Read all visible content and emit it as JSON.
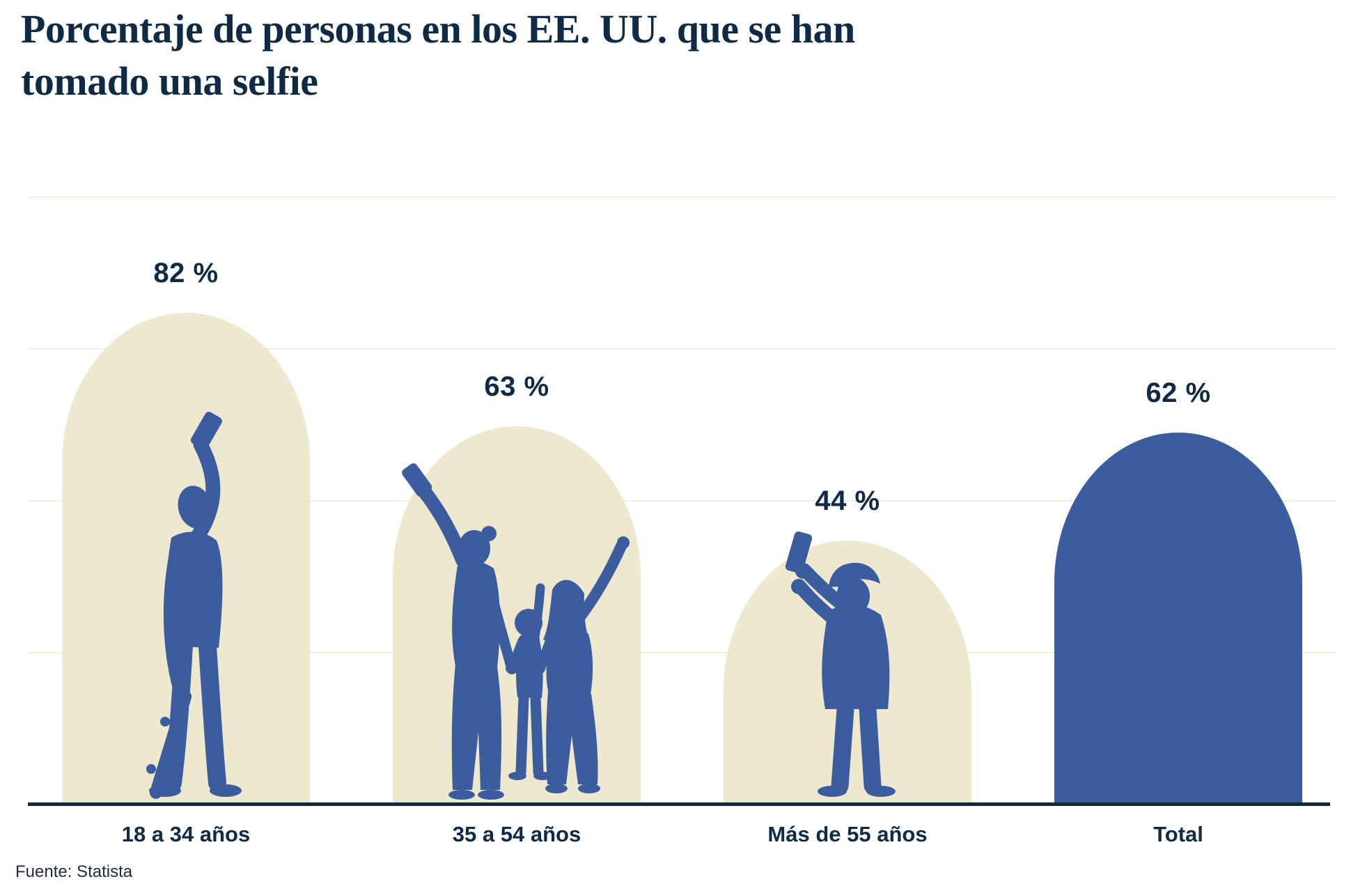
{
  "title": "Porcentaje de personas en los EE. UU. que se han tomado una selfie",
  "source_label": "Fuente: Statista",
  "colors": {
    "background": "#ffffff",
    "title_navy": "#0e2a45",
    "bar_beige": "#eee8ce",
    "bar_blue": "#3b5c9f",
    "gridline": "#f1ecdc",
    "axis": "#16283e",
    "source_text": "#1d2c3c"
  },
  "chart_data": {
    "type": "bar",
    "title": "Porcentaje de personas en los EE. UU. que se han tomado una selfie",
    "categories": [
      "18 a 34 años",
      "35 a 54 años",
      "Más de 55 años",
      "Total"
    ],
    "values": [
      82,
      63,
      44,
      62
    ],
    "value_labels": [
      "82 %",
      "63 %",
      "44 %",
      "62 %"
    ],
    "unit": "%",
    "ylim": [
      0,
      100
    ],
    "gridlines": "4 horizontal lines at 25/50/75/100, no tick labels",
    "legend": "none",
    "bar_shape": "rounded arch (dome top)",
    "bar_styles": [
      "beige with blue silhouette",
      "beige with blue silhouette",
      "beige with blue silhouette",
      "solid blue"
    ],
    "silhouettes": [
      "young man taking selfie holding skateboard",
      "mother with two children taking family selfie",
      "older man in flat cap taking selfie",
      "none"
    ],
    "source": "Fuente: Statista"
  }
}
